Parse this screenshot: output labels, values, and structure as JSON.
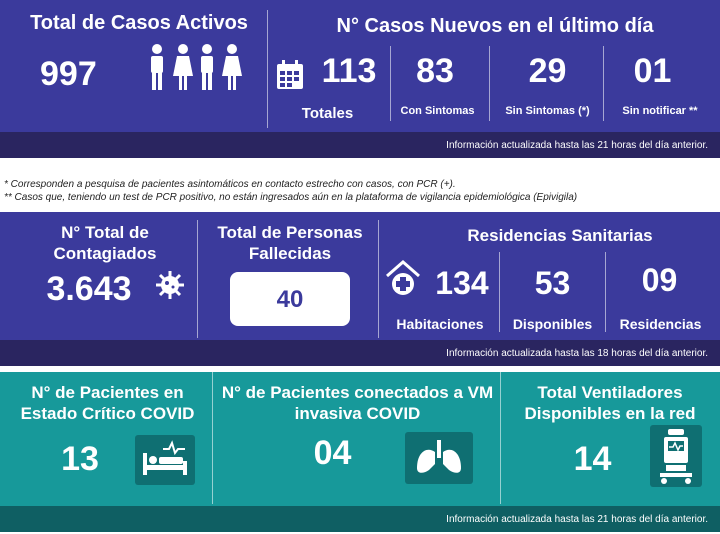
{
  "panel1": {
    "active_title": "Total de Casos Activos",
    "active_value": "997",
    "new_title": "N° Casos Nuevos en el último día",
    "total_value": "113",
    "total_label": "Totales",
    "sintomas_value": "83",
    "sintomas_label": "Con Sintomas",
    "sin_sintomas_value": "29",
    "sin_sintomas_label": "Sin Sintomas (*)",
    "sin_notificar_value": "01",
    "sin_notificar_label": "Sin notificar **",
    "footer": "Información actualizada hasta las 21 horas del día anterior."
  },
  "notes": {
    "line1": "* Corresponden a pesquisa de pacientes asintomáticos en contacto estrecho con casos, con PCR (+).",
    "line2": "** Casos que, teniendo un test de PCR positivo, no están ingresados aún en la plataforma de vigilancia epidemiológica (Epivigila)"
  },
  "panel2": {
    "contagiados_title": "N° Total de Contagiados",
    "contagiados_value": "3.643",
    "fallecidas_title": "Total de Personas Fallecidas",
    "fallecidas_value": "40",
    "residencias_title": "Residencias Sanitarias",
    "habitaciones_value": "134",
    "habitaciones_label": "Habitaciones",
    "disponibles_value": "53",
    "disponibles_label": "Disponibles",
    "residencias_value": "09",
    "residencias_label": "Residencias",
    "footer": "Información actualizada hasta las 18 horas del día anterior."
  },
  "panel3": {
    "critico_title": "N° de Pacientes en Estado Crítico COVID",
    "critico_value": "13",
    "vm_title": "N° de Pacientes conectados a VM invasiva COVID",
    "vm_value": "04",
    "ventiladores_title": "Total Ventiladores Disponibles en la red",
    "ventiladores_value": "14",
    "footer": "Información actualizada hasta las 21 horas del día anterior."
  },
  "colors": {
    "purple": "#3b3a9c",
    "teal": "#17999a",
    "footer_dark": "#2a2560",
    "footer_teal": "#0f5f63"
  }
}
